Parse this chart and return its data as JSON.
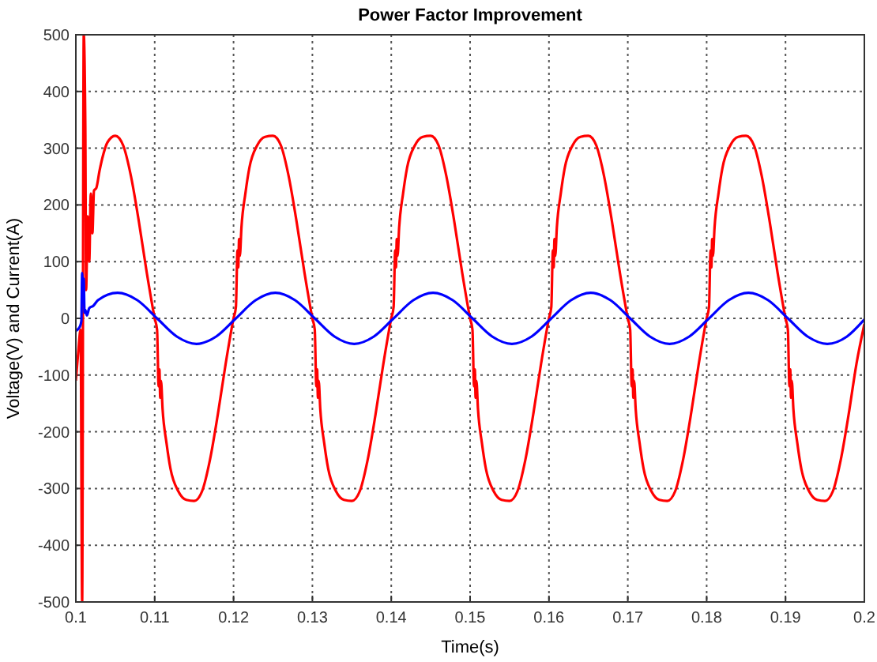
{
  "chart_data": {
    "type": "line",
    "title": "Power Factor Improvement",
    "xlabel": "Time(s)",
    "ylabel": "Voltage(V) and Current(A)",
    "xlim": [
      0.1,
      0.2
    ],
    "xticks": [
      0.1,
      0.11,
      0.12,
      0.13,
      0.14,
      0.15,
      0.16,
      0.17,
      0.18,
      0.19,
      0.2
    ],
    "ylim": [
      -500,
      500
    ],
    "yticks": [
      -500,
      -400,
      -300,
      -200,
      -100,
      0,
      100,
      200,
      300,
      400,
      500
    ],
    "grid": true,
    "line_style": "solid",
    "marker": "none",
    "series": [
      {
        "color": "#ff0000",
        "x": [
          0.1,
          0.1003,
          0.1006,
          0.1008,
          0.101,
          0.1012,
          0.1013,
          0.1015,
          0.1017,
          0.1019,
          0.1021,
          0.1023,
          0.1026,
          0.103,
          0.1035,
          0.104,
          0.105,
          0.106,
          0.107,
          0.108,
          0.109,
          0.11,
          0.1103,
          0.1105,
          0.1106,
          0.1107,
          0.1108,
          0.111,
          0.1115,
          0.112,
          0.113,
          0.114,
          0.115,
          0.116,
          0.117,
          0.118,
          0.119,
          0.12,
          0.1203,
          0.1205,
          0.1206,
          0.1207,
          0.1208,
          0.121,
          0.1215,
          0.122,
          0.123,
          0.124,
          0.125,
          0.126,
          0.127,
          0.128,
          0.129,
          0.13,
          0.1303,
          0.1305,
          0.1306,
          0.1307,
          0.1308,
          0.131,
          0.1315,
          0.132,
          0.133,
          0.134,
          0.135,
          0.136,
          0.137,
          0.138,
          0.139,
          0.14,
          0.1403,
          0.1405,
          0.1406,
          0.1407,
          0.1408,
          0.141,
          0.1415,
          0.142,
          0.143,
          0.144,
          0.145,
          0.146,
          0.147,
          0.148,
          0.149,
          0.15,
          0.1503,
          0.1505,
          0.1506,
          0.1507,
          0.1508,
          0.151,
          0.1515,
          0.152,
          0.153,
          0.154,
          0.155,
          0.156,
          0.157,
          0.158,
          0.159,
          0.16,
          0.1603,
          0.1605,
          0.1606,
          0.1607,
          0.1608,
          0.161,
          0.1615,
          0.162,
          0.163,
          0.164,
          0.165,
          0.166,
          0.167,
          0.168,
          0.169,
          0.17,
          0.1703,
          0.1705,
          0.1706,
          0.1707,
          0.1708,
          0.171,
          0.1715,
          0.172,
          0.173,
          0.174,
          0.175,
          0.176,
          0.177,
          0.178,
          0.179,
          0.18,
          0.1803,
          0.1805,
          0.1806,
          0.1807,
          0.1808,
          0.181,
          0.1815,
          0.182,
          0.183,
          0.184,
          0.185,
          0.186,
          0.187,
          0.188,
          0.189,
          0.19,
          0.1903,
          0.1905,
          0.1906,
          0.1907,
          0.1908,
          0.191,
          0.1915,
          0.192,
          0.193,
          0.194,
          0.195,
          0.196,
          0.197,
          0.198,
          0.199,
          0.2
        ],
        "values": [
          -110,
          -60,
          -20,
          -500,
          500,
          340,
          50,
          180,
          100,
          220,
          150,
          225,
          230,
          260,
          290,
          310,
          322,
          305,
          250,
          170,
          80,
          0,
          -20,
          -120,
          -90,
          -140,
          -110,
          -160,
          -220,
          -265,
          -305,
          -320,
          -322,
          -305,
          -250,
          -170,
          -80,
          0,
          20,
          120,
          90,
          140,
          110,
          160,
          220,
          265,
          305,
          320,
          322,
          305,
          250,
          170,
          80,
          0,
          -20,
          -120,
          -90,
          -140,
          -110,
          -160,
          -220,
          -265,
          -305,
          -320,
          -322,
          -305,
          -250,
          -170,
          -80,
          0,
          20,
          120,
          90,
          140,
          110,
          160,
          220,
          265,
          305,
          320,
          322,
          305,
          250,
          170,
          80,
          0,
          -20,
          -120,
          -90,
          -140,
          -110,
          -160,
          -220,
          -265,
          -305,
          -320,
          -322,
          -305,
          -250,
          -170,
          -80,
          0,
          20,
          120,
          90,
          140,
          110,
          160,
          220,
          265,
          305,
          320,
          322,
          305,
          250,
          170,
          80,
          0,
          -20,
          -120,
          -90,
          -140,
          -110,
          -160,
          -220,
          -265,
          -305,
          -320,
          -322,
          -305,
          -250,
          -170,
          -80,
          0,
          20,
          120,
          90,
          140,
          110,
          160,
          220,
          265,
          305,
          320,
          322,
          305,
          250,
          170,
          80,
          0,
          -20,
          -120,
          -90,
          -140,
          -110,
          -160,
          -220,
          -265,
          -305,
          -320,
          -322,
          -305,
          -250,
          -170,
          -80,
          -10
        ]
      },
      {
        "color": "#0000ff",
        "x": [
          0.1,
          0.1005,
          0.1007,
          0.1008,
          0.1009,
          0.101,
          0.1011,
          0.1012,
          0.1014,
          0.1017,
          0.1022,
          0.1028,
          0.1053,
          0.1078,
          0.1103,
          0.1128,
          0.1153,
          0.1178,
          0.1203,
          0.1228,
          0.1253,
          0.1278,
          0.1303,
          0.1328,
          0.1353,
          0.1378,
          0.1403,
          0.1428,
          0.1453,
          0.1478,
          0.1503,
          0.1528,
          0.1553,
          0.1578,
          0.1603,
          0.1628,
          0.1653,
          0.1678,
          0.1703,
          0.1728,
          0.1753,
          0.1778,
          0.1803,
          0.1828,
          0.1853,
          0.1878,
          0.1903,
          0.1928,
          0.1953,
          0.1978,
          0.2
        ],
        "values": [
          -22,
          -15,
          -5,
          80,
          40,
          70,
          10,
          15,
          5,
          18,
          22,
          32,
          45,
          32,
          0,
          -32,
          -45,
          -32,
          0,
          32,
          45,
          32,
          0,
          -32,
          -45,
          -32,
          0,
          32,
          45,
          32,
          0,
          -32,
          -45,
          -32,
          0,
          32,
          45,
          32,
          0,
          -32,
          -45,
          -32,
          0,
          32,
          45,
          32,
          0,
          -32,
          -45,
          -32,
          -2
        ]
      }
    ]
  }
}
